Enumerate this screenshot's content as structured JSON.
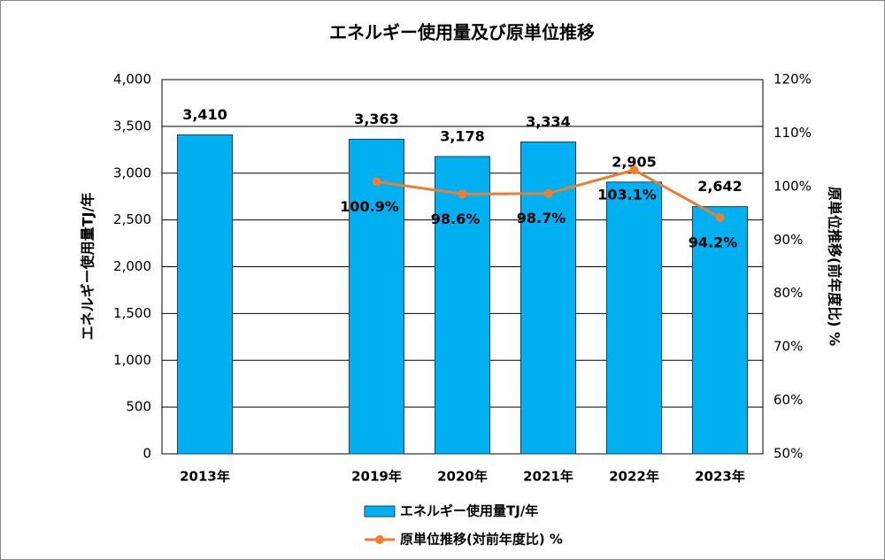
{
  "chart_data": {
    "type": "bar",
    "title": "エネルギー使用量及び原単位推移",
    "categories": [
      "2013年",
      null,
      "2019年",
      "2020年",
      "2021年",
      "2022年",
      "2023年"
    ],
    "series": [
      {
        "name": "エネルギー使用量TJ/年",
        "type": "bar",
        "color": "#00b0f0",
        "values": [
          3410,
          null,
          3363,
          3178,
          3334,
          2905,
          2642
        ],
        "value_labels": [
          "3,410",
          null,
          "3,363",
          "3,178",
          "3,334",
          "2,905",
          "2,642"
        ]
      },
      {
        "name": "原単位推移(対前年度比) %",
        "type": "line",
        "axis": "y2",
        "color": "#ed7d31",
        "values": [
          null,
          null,
          100.9,
          98.6,
          98.7,
          103.1,
          94.2
        ],
        "value_labels": [
          null,
          null,
          "100.9%",
          "98.6%",
          "98.7%",
          "103.1%",
          "94.2%"
        ]
      }
    ],
    "ylabel": "エネルギー使用量TJ/年",
    "y2label": "原単位推移(前年度比) %",
    "ylim": [
      0,
      4000
    ],
    "yticks": [
      0,
      500,
      {
        "value": 1000,
        "label": "1,000"
      },
      {
        "value": 1500,
        "label": "1,500"
      },
      {
        "value": 2000,
        "label": "2,000"
      },
      {
        "value": 2500,
        "label": "2,500"
      },
      {
        "value": 3000,
        "label": "3,000"
      },
      {
        "value": 3500,
        "label": "3,500"
      },
      {
        "value": 4000,
        "label": "4,000"
      }
    ],
    "y2lim": [
      50,
      120
    ],
    "y2ticks": [
      {
        "value": 50,
        "label": "50%"
      },
      {
        "value": 60,
        "label": "60%"
      },
      {
        "value": 70,
        "label": "70%"
      },
      {
        "value": 80,
        "label": "80%"
      },
      {
        "value": 90,
        "label": "90%"
      },
      {
        "value": 100,
        "label": "100%"
      },
      {
        "value": 110,
        "label": "110%"
      },
      {
        "value": 120,
        "label": "120%"
      }
    ],
    "grid": true,
    "legend": "bottom"
  }
}
